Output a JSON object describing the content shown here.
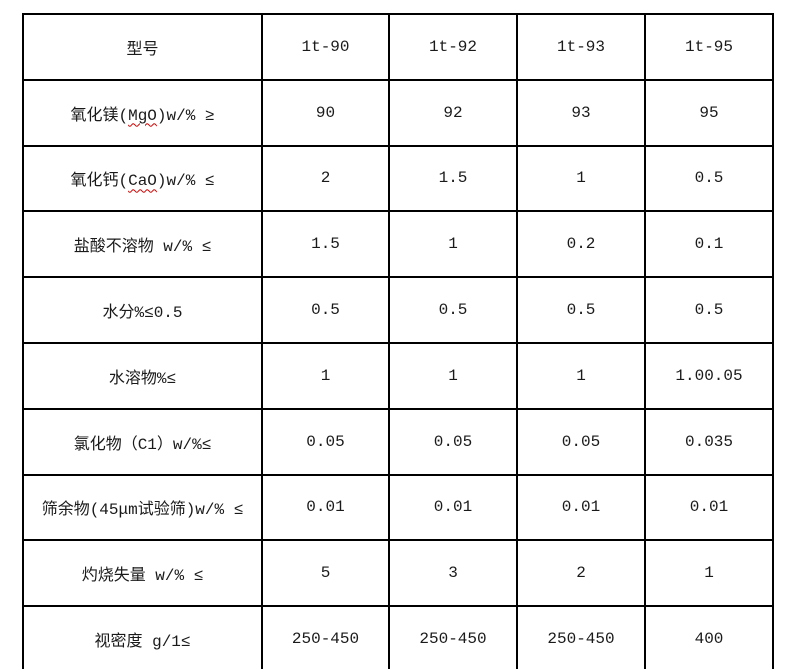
{
  "colors": {
    "background": "#ffffff",
    "table_border": "#000000",
    "text": "#1a1a1a",
    "spellcheck_underline": "#cc0000"
  },
  "table": {
    "rows": [
      {
        "cells": [
          {
            "parts": [
              {
                "text": "型号"
              }
            ]
          },
          {
            "parts": [
              {
                "text": "1t-90"
              }
            ]
          },
          {
            "parts": [
              {
                "text": "1t-92"
              }
            ]
          },
          {
            "parts": [
              {
                "text": "1t-93"
              }
            ]
          },
          {
            "parts": [
              {
                "text": "1t-95"
              }
            ]
          }
        ]
      },
      {
        "cells": [
          {
            "parts": [
              {
                "text": "氧化镁("
              },
              {
                "text": "MgO",
                "squiggle": true
              },
              {
                "text": ")w/% ≥"
              }
            ]
          },
          {
            "parts": [
              {
                "text": "90"
              }
            ]
          },
          {
            "parts": [
              {
                "text": "92"
              }
            ]
          },
          {
            "parts": [
              {
                "text": "93"
              }
            ]
          },
          {
            "parts": [
              {
                "text": "95"
              }
            ]
          }
        ]
      },
      {
        "cells": [
          {
            "parts": [
              {
                "text": "氧化钙("
              },
              {
                "text": "CaO",
                "squiggle": true
              },
              {
                "text": ")w/% ≤"
              }
            ]
          },
          {
            "parts": [
              {
                "text": "2"
              }
            ]
          },
          {
            "parts": [
              {
                "text": "1.5"
              }
            ]
          },
          {
            "parts": [
              {
                "text": "1"
              }
            ]
          },
          {
            "parts": [
              {
                "text": "0.5"
              }
            ]
          }
        ]
      },
      {
        "cells": [
          {
            "parts": [
              {
                "text": "盐酸不溶物 w/% ≤"
              }
            ]
          },
          {
            "parts": [
              {
                "text": "1.5"
              }
            ]
          },
          {
            "parts": [
              {
                "text": "1"
              }
            ]
          },
          {
            "parts": [
              {
                "text": "0.2"
              }
            ]
          },
          {
            "parts": [
              {
                "text": "0.1"
              }
            ]
          }
        ]
      },
      {
        "cells": [
          {
            "parts": [
              {
                "text": "水分%≤0.5"
              }
            ]
          },
          {
            "parts": [
              {
                "text": "0.5"
              }
            ]
          },
          {
            "parts": [
              {
                "text": "0.5"
              }
            ]
          },
          {
            "parts": [
              {
                "text": "0.5"
              }
            ]
          },
          {
            "parts": [
              {
                "text": "0.5"
              }
            ]
          }
        ]
      },
      {
        "cells": [
          {
            "parts": [
              {
                "text": "水溶物%≤"
              }
            ]
          },
          {
            "parts": [
              {
                "text": "1"
              }
            ]
          },
          {
            "parts": [
              {
                "text": "1"
              }
            ]
          },
          {
            "parts": [
              {
                "text": "1"
              }
            ]
          },
          {
            "parts": [
              {
                "text": "1.00.05"
              }
            ]
          }
        ]
      },
      {
        "cells": [
          {
            "parts": [
              {
                "text": "氯化物（C1）w/%≤"
              }
            ]
          },
          {
            "parts": [
              {
                "text": "0.05"
              }
            ]
          },
          {
            "parts": [
              {
                "text": "0.05"
              }
            ]
          },
          {
            "parts": [
              {
                "text": "0.05"
              }
            ]
          },
          {
            "parts": [
              {
                "text": "0.035"
              }
            ]
          }
        ]
      },
      {
        "cells": [
          {
            "parts": [
              {
                "text": "筛余物(45μm试验筛)w/% ≤"
              }
            ]
          },
          {
            "parts": [
              {
                "text": "0.01"
              }
            ]
          },
          {
            "parts": [
              {
                "text": "0.01"
              }
            ]
          },
          {
            "parts": [
              {
                "text": "0.01"
              }
            ]
          },
          {
            "parts": [
              {
                "text": "0.01"
              }
            ]
          }
        ]
      },
      {
        "cells": [
          {
            "parts": [
              {
                "text": "灼烧失量 w/% ≤"
              }
            ]
          },
          {
            "parts": [
              {
                "text": "5"
              }
            ]
          },
          {
            "parts": [
              {
                "text": "3"
              }
            ]
          },
          {
            "parts": [
              {
                "text": "2"
              }
            ]
          },
          {
            "parts": [
              {
                "text": "1"
              }
            ]
          }
        ]
      },
      {
        "cells": [
          {
            "parts": [
              {
                "text": "视密度 g/1≤"
              }
            ]
          },
          {
            "parts": [
              {
                "text": "250-450"
              }
            ]
          },
          {
            "parts": [
              {
                "text": "250-450"
              }
            ]
          },
          {
            "parts": [
              {
                "text": "250-450"
              }
            ]
          },
          {
            "parts": [
              {
                "text": "400"
              }
            ]
          }
        ]
      }
    ]
  },
  "chart_data": {
    "type": "table",
    "columns": [
      "型号",
      "1t-90",
      "1t-92",
      "1t-93",
      "1t-95"
    ],
    "rows": [
      [
        "氧化镁(MgO)w/% ≥",
        "90",
        "92",
        "93",
        "95"
      ],
      [
        "氧化钙(CaO)w/% ≤",
        "2",
        "1.5",
        "1",
        "0.5"
      ],
      [
        "盐酸不溶物 w/% ≤",
        "1.5",
        "1",
        "0.2",
        "0.1"
      ],
      [
        "水分%≤0.5",
        "0.5",
        "0.5",
        "0.5",
        "0.5"
      ],
      [
        "水溶物%≤",
        "1",
        "1",
        "1",
        "1.00.05"
      ],
      [
        "氯化物（C1）w/%≤",
        "0.05",
        "0.05",
        "0.05",
        "0.035"
      ],
      [
        "筛余物(45μm试验筛)w/% ≤",
        "0.01",
        "0.01",
        "0.01",
        "0.01"
      ],
      [
        "灼烧失量 w/% ≤",
        "5",
        "3",
        "2",
        "1"
      ],
      [
        "视密度 g/1≤",
        "250-450",
        "250-450",
        "250-450",
        "400"
      ]
    ]
  }
}
